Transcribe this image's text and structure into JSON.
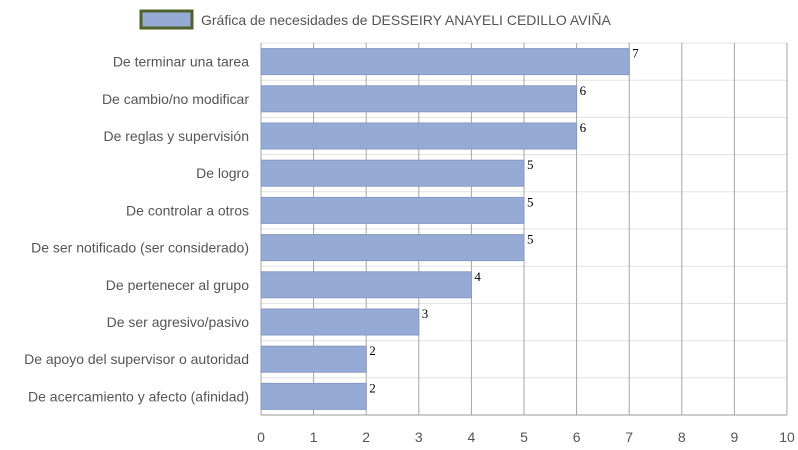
{
  "chart_data": {
    "type": "bar",
    "orientation": "horizontal",
    "categories": [
      "De terminar una tarea",
      "De cambio/no modificar",
      "De reglas y supervisión",
      "De logro",
      "De controlar a otros",
      "De ser notificado (ser considerado)",
      "De pertenecer al grupo",
      "De ser agresivo/pasivo",
      "De apoyo del supervisor o autoridad",
      "De acercamiento y afecto (afinidad)"
    ],
    "series": [
      {
        "name": "Gráfica de necesidades de DESSEIRY ANAYELI CEDILLO AVIÑA",
        "values": [
          7,
          6,
          6,
          5,
          5,
          5,
          4,
          3,
          2,
          2
        ]
      }
    ],
    "xlim": [
      0,
      10
    ],
    "x_ticks": [
      0,
      1,
      2,
      3,
      4,
      5,
      6,
      7,
      8,
      9,
      10
    ],
    "grid": true,
    "legend_position": "top",
    "data_labels": true,
    "colors": {
      "bar_fill": "#95aad4",
      "bar_stroke": "#8599c4",
      "legend_border": "#4f6228",
      "grid_vertical": "#a6a6a6",
      "grid_horizontal": "#e3e3e3",
      "axis": "#999999"
    }
  }
}
